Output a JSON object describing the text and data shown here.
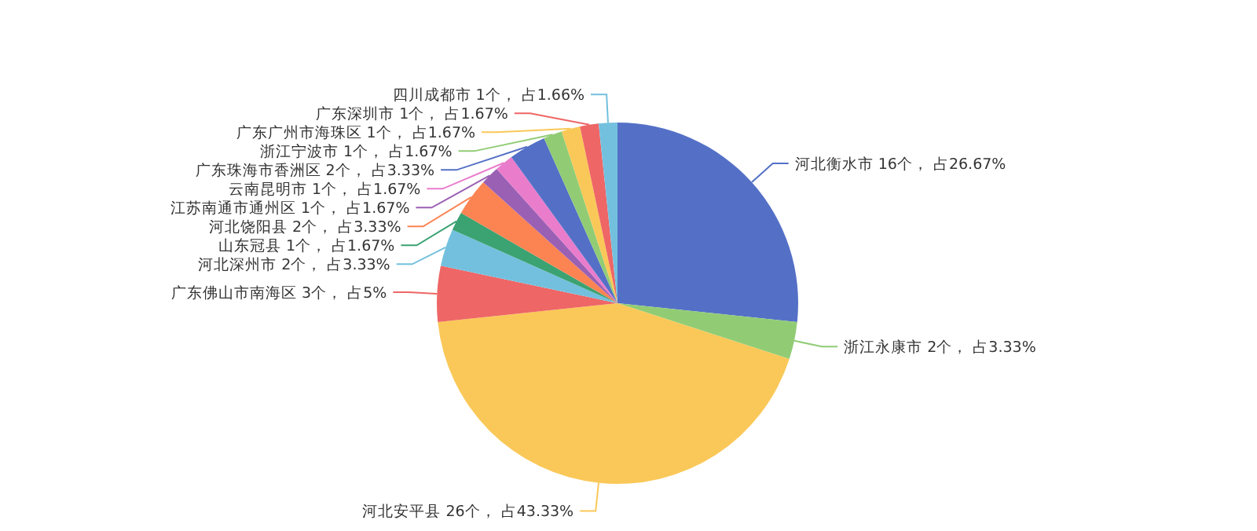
{
  "chart_data": {
    "type": "pie",
    "categories": [
      "河北衡水市",
      "浙江永康市",
      "河北安平县",
      "广东佛山市南海区",
      "河北深州市",
      "山东冠县",
      "河北饶阳县",
      "江苏南通市通州区",
      "云南昆明市",
      "广东珠海市香洲区",
      "浙江宁波市",
      "广东广州市海珠区",
      "广东深圳市",
      "四川成都市"
    ],
    "values": [
      16,
      2,
      26,
      3,
      2,
      1,
      2,
      1,
      1,
      2,
      1,
      1,
      1,
      1
    ],
    "colors": [
      "#5470c6",
      "#91cc75",
      "#fac858",
      "#ee6666",
      "#73c0de",
      "#3ba272",
      "#fc8452",
      "#9a60b4",
      "#ea7ccc",
      "#5470c6",
      "#91cc75",
      "#fac858",
      "#ee6666",
      "#73c0de"
    ],
    "value_labels": [
      "16个， 占26.67%",
      "2个， 占3.33%",
      "26个， 占43.33%",
      "3个， 占5%",
      "2个， 占3.33%",
      "1个， 占1.67%",
      "2个， 占3.33%",
      "1个， 占1.67%",
      "1个， 占1.67%",
      "2个， 占3.33%",
      "1个， 占1.67%",
      "1个， 占1.67%",
      "1个， 占1.67%",
      "1个， 占1.66%"
    ]
  }
}
